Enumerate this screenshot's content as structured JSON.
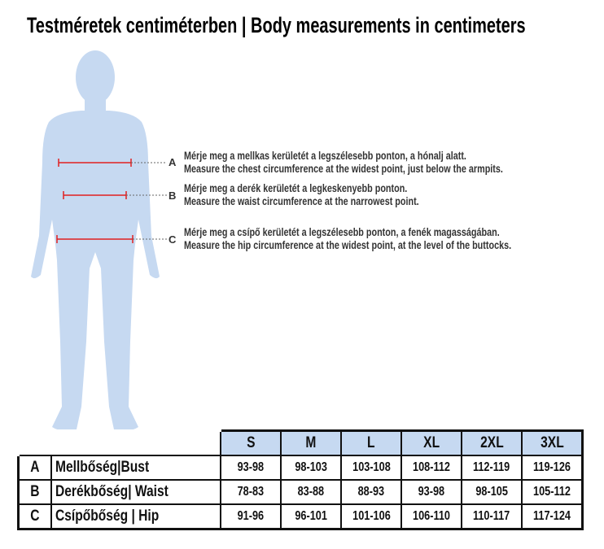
{
  "title": "Testméretek centiméterben | Body measurements in centimeters",
  "colors": {
    "figure": "#c6d9f1",
    "header": "#c6d9f1",
    "marker": "#e02020"
  },
  "instructions": [
    {
      "letter": "A",
      "hu": "Mérje meg a mellkas kerületét a legszélesebb ponton, a hónalj alatt.",
      "en": "Measure the chest circumference at the widest point, just below the armpits."
    },
    {
      "letter": "B",
      "hu": "Mérje meg a derék kerületét a legkeskenyebb ponton.",
      "en": "Measure the waist circumference at the narrowest point."
    },
    {
      "letter": "C",
      "hu": "Mérje meg a csípő kerületét a legszélesebb ponton, a fenék magasságában.",
      "en": "Measure the hip circumference at the widest point, at the level of the buttocks."
    }
  ],
  "table": {
    "sizes": [
      "S",
      "M",
      "L",
      "XL",
      "2XL",
      "3XL"
    ],
    "rows": [
      {
        "letter": "A",
        "label": "Mellbőség|Bust",
        "values": [
          "93-98",
          "98-103",
          "103-108",
          "108-112",
          "112-119",
          "119-126"
        ]
      },
      {
        "letter": "B",
        "label": "Derékbőség| Waist",
        "values": [
          "78-83",
          "83-88",
          "88-93",
          "93-98",
          "98-105",
          "105-112"
        ]
      },
      {
        "letter": "C",
        "label": "Csípőbőség | Hip",
        "values": [
          "91-96",
          "96-101",
          "101-106",
          "106-110",
          "110-117",
          "117-124"
        ]
      }
    ]
  }
}
